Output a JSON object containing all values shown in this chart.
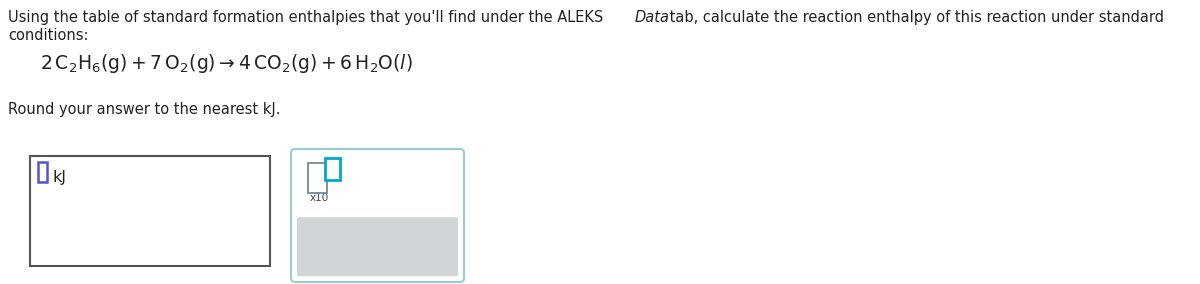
{
  "background_color": "#ffffff",
  "font_size_main": 10.5,
  "font_size_eq": 13.5,
  "text_color": "#222222",
  "line1a": "Using the table of standard formation enthalpies that you'll find under the ALEKS ",
  "line1b": "Data",
  "line1c": " tab, calculate the reaction enthalpy of this reaction under standard",
  "line2": "conditions:",
  "round_text": "Round your answer to the nearest kJ.",
  "kj_label": "kJ",
  "x10_label": "x10",
  "cross_symbol": "×",
  "undo_symbol": "↵",
  "input_box_color": "#555555",
  "cursor_border_color": "#5555cc",
  "panel_border_color": "#99cccc",
  "panel_bg": "#ffffff",
  "bottom_panel_bg": "#d0d5d8",
  "gray_sq_color": "#778899",
  "teal_sq_color": "#00aacc",
  "icon_color": "#667788"
}
